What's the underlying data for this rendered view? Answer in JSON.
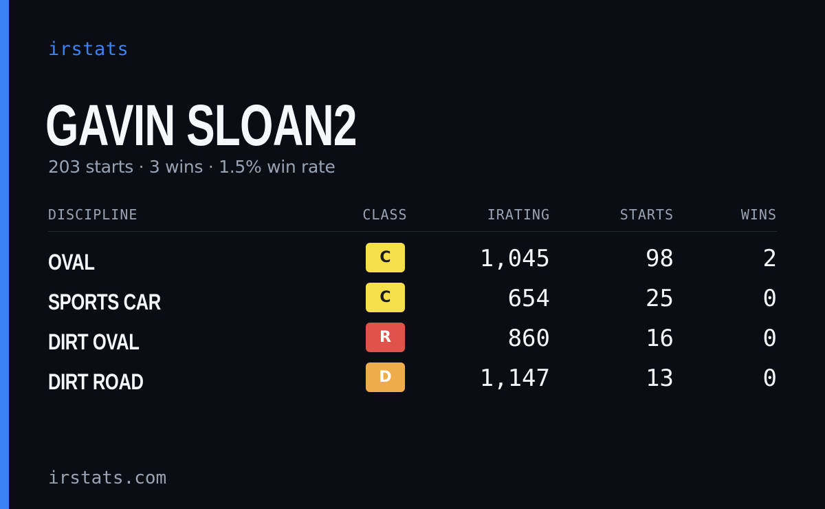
{
  "brand": "irstats",
  "driver": {
    "name": "GAVIN SLOAN2",
    "summary": "203 starts · 3 wins · 1.5% win rate"
  },
  "table": {
    "headers": {
      "discipline": "DISCIPLINE",
      "class": "CLASS",
      "irating": "IRATING",
      "starts": "STARTS",
      "wins": "WINS"
    },
    "rows": [
      {
        "discipline": "OVAL",
        "class": "C",
        "class_color": "#f5e04a",
        "class_text_color": "#1a1a1a",
        "irating": "1,045",
        "starts": "98",
        "wins": "2"
      },
      {
        "discipline": "SPORTS CAR",
        "class": "C",
        "class_color": "#f5e04a",
        "class_text_color": "#1a1a1a",
        "irating": "654",
        "starts": "25",
        "wins": "0"
      },
      {
        "discipline": "DIRT OVAL",
        "class": "R",
        "class_color": "#e0534a",
        "class_text_color": "#ffffff",
        "irating": "860",
        "starts": "16",
        "wins": "0"
      },
      {
        "discipline": "DIRT ROAD",
        "class": "D",
        "class_color": "#eeac4a",
        "class_text_color": "#ffffff",
        "irating": "1,147",
        "starts": "13",
        "wins": "0"
      }
    ]
  },
  "footer": "irstats.com",
  "colors": {
    "accent": "#3b82f6",
    "background": "#0a0d14",
    "muted_text": "#9aa3b2",
    "primary_text": "#f5f7fb"
  }
}
